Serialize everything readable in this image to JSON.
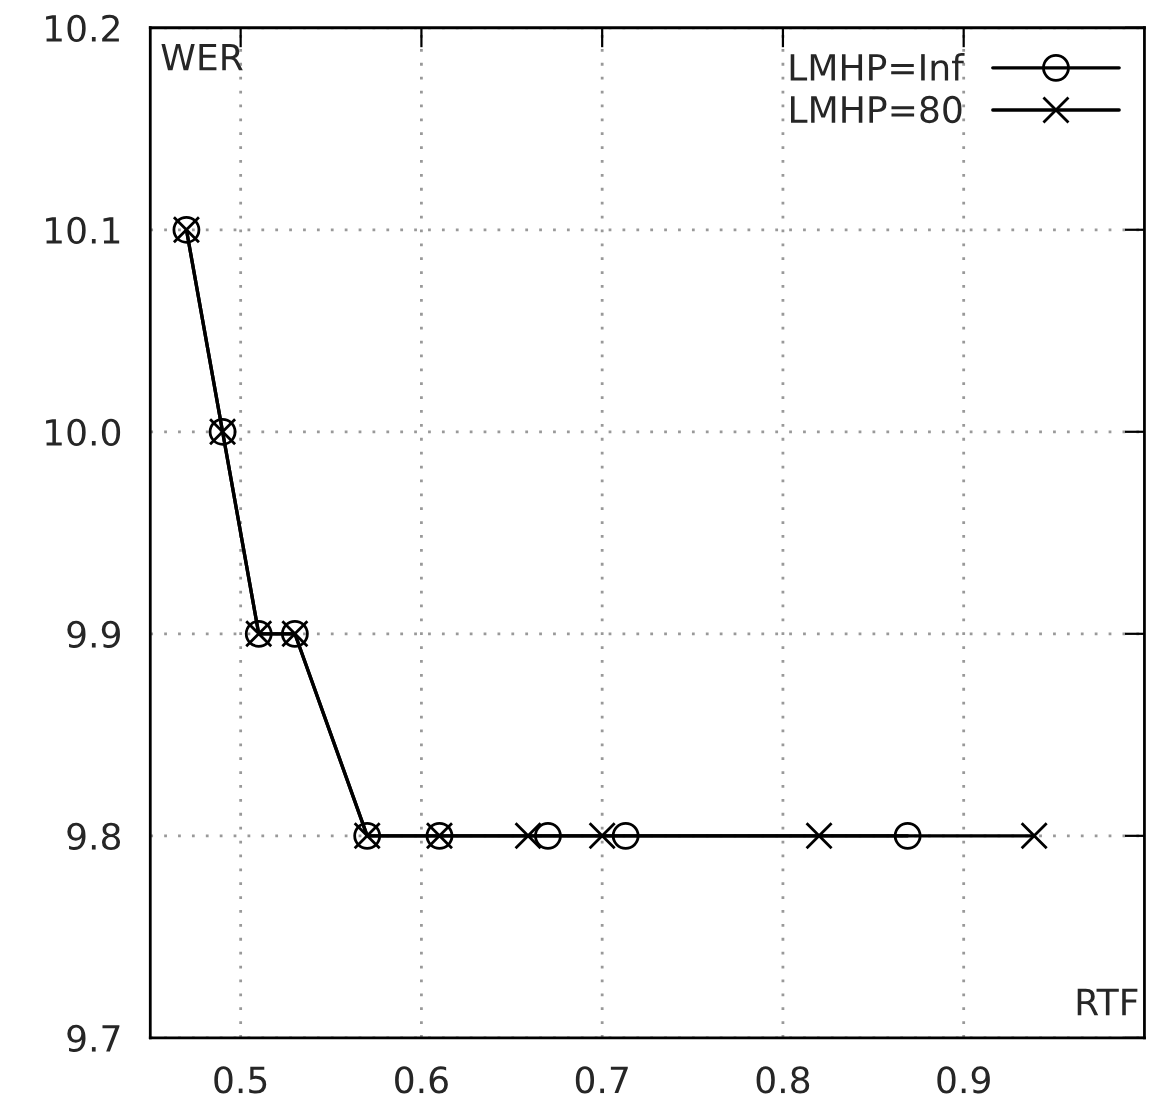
{
  "chart_data": {
    "type": "line",
    "xlabel": "RTF",
    "ylabel": "WER",
    "series": [
      {
        "name": "LMHP=Inf",
        "color": "#000000",
        "marker": "circle",
        "x": [
          0.47,
          0.49,
          0.51,
          0.53,
          0.57,
          0.61,
          0.67,
          0.713,
          0.869
        ],
        "values": [
          10.1,
          10.0,
          9.9,
          9.9,
          9.8,
          9.8,
          9.8,
          9.8,
          9.8
        ]
      },
      {
        "name": "LMHP=80",
        "color": "#000000",
        "marker": "cross",
        "x": [
          0.47,
          0.49,
          0.51,
          0.53,
          0.57,
          0.61,
          0.659,
          0.7,
          0.82,
          0.939
        ],
        "values": [
          10.1,
          10.0,
          9.9,
          9.9,
          9.8,
          9.8,
          9.8,
          9.8,
          9.8,
          9.8
        ]
      }
    ],
    "xlim": [
      0.45,
      1.0
    ],
    "xticks": [
      0.5,
      0.6,
      0.7,
      0.8,
      0.9
    ],
    "ylim": [
      9.7,
      10.2
    ],
    "yticks": [
      {
        "value": 9.7,
        "label": "9.7"
      },
      {
        "value": 9.8,
        "label": "9.8"
      },
      {
        "value": 9.9,
        "label": "9.9"
      },
      {
        "value": 10.0,
        "label": "10.0"
      },
      {
        "value": 10.1,
        "label": "10.1"
      },
      {
        "value": 10.2,
        "label": "10.2"
      }
    ],
    "grid": true,
    "legend": "top right",
    "line_style": "solid"
  }
}
